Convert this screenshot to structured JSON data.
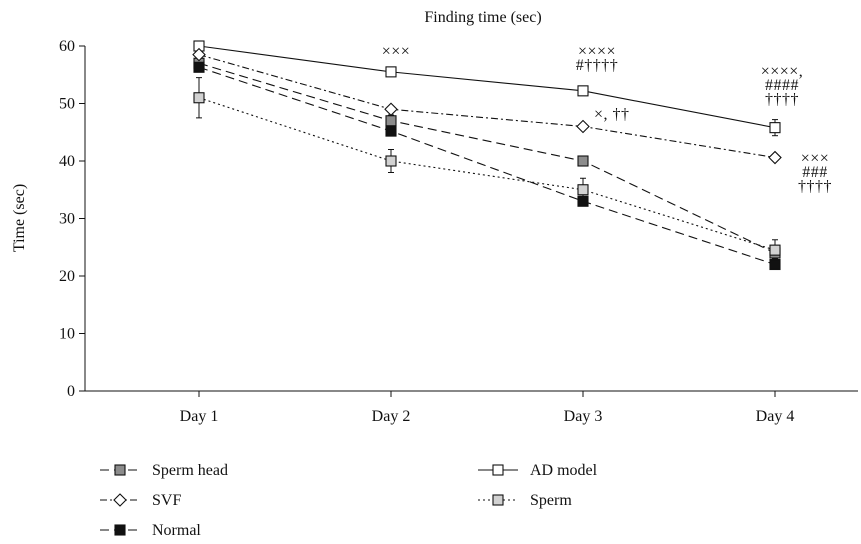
{
  "chart_data": {
    "type": "line",
    "title": "Finding time (sec)",
    "xlabel": "",
    "ylabel": "Time (sec)",
    "categories": [
      "Day 1",
      "Day 2",
      "Day 3",
      "Day 4"
    ],
    "ylim": [
      0,
      60
    ],
    "yticks": [
      0,
      10,
      20,
      30,
      40,
      50,
      60
    ],
    "grid": false,
    "legend_position": "bottom",
    "series": [
      {
        "name": "Sperm head",
        "values": [
          57,
          47,
          40,
          24
        ],
        "errors": [
          1,
          1,
          0.6,
          1
        ],
        "marker": "square-gray",
        "dash": "dashed"
      },
      {
        "name": "AD model",
        "values": [
          60,
          55.5,
          52.2,
          45.8
        ],
        "errors": [
          0.3,
          0.5,
          0.6,
          1.4
        ],
        "marker": "square-open",
        "dash": "solid"
      },
      {
        "name": "SVF",
        "values": [
          58.5,
          49,
          46,
          40.6
        ],
        "errors": [
          0.5,
          0.5,
          0.5,
          0.5
        ],
        "marker": "diamond-open",
        "dash": "dashdot"
      },
      {
        "name": "Sperm",
        "values": [
          51,
          40,
          35,
          24.5
        ],
        "errors": [
          3.5,
          2,
          2,
          1.8
        ],
        "marker": "square-lightgray",
        "dash": "dotted"
      },
      {
        "name": "Normal",
        "values": [
          56.3,
          45.2,
          33,
          22
        ],
        "errors": [
          0.5,
          0.8,
          0.8,
          0.6
        ],
        "marker": "square-black",
        "dash": "dashed"
      }
    ],
    "annotations": [
      {
        "category": "Day 2",
        "lines": [
          "×××"
        ]
      },
      {
        "category": "Day 3",
        "lines": [
          "××××",
          "#††††"
        ]
      },
      {
        "category": "Day 3",
        "lines": [
          "×, ††"
        ],
        "series": "SVF"
      },
      {
        "category": "Day 4",
        "lines": [
          "××××,",
          "####",
          "††††"
        ],
        "series": "AD model"
      },
      {
        "category": "Day 4",
        "lines": [
          "×××",
          "###",
          "††††"
        ],
        "series": "SVF"
      }
    ]
  },
  "colors": {
    "line": "#111111",
    "marker_black": "#111111",
    "marker_gray": "#8c8c8c",
    "marker_lightgray": "#d2d2d2",
    "marker_open": "#ffffff"
  }
}
